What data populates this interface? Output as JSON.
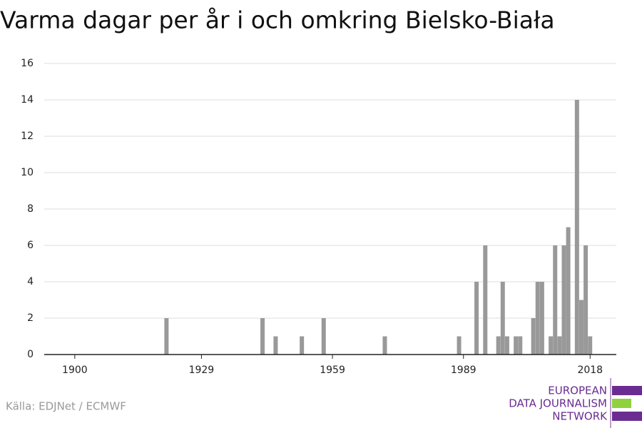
{
  "chart_data": {
    "type": "bar",
    "title": "Varma dagar per år i och omkring Bielsko-Biała",
    "source": "Källa: EDJNet / ECMWF",
    "logo": [
      "EUROPEAN",
      "DATA JOURNALISM",
      "NETWORK"
    ],
    "x": [
      1921,
      1943,
      1946,
      1952,
      1957,
      1971,
      1988,
      1992,
      1994,
      1997,
      1998,
      1999,
      2001,
      2002,
      2005,
      2006,
      2007,
      2009,
      2010,
      2011,
      2012,
      2013,
      2015,
      2016,
      2017,
      2018
    ],
    "values": [
      2,
      2,
      1,
      1,
      2,
      1,
      1,
      4,
      6,
      1,
      4,
      1,
      1,
      1,
      2,
      4,
      4,
      1,
      6,
      1,
      6,
      7,
      14,
      3,
      6,
      1
    ],
    "color": "#999999",
    "xlim": [
      1893,
      2024
    ],
    "xticks": [
      1900,
      1929,
      1959,
      1989,
      2018
    ],
    "ylim": [
      0,
      16
    ],
    "yticks": [
      0,
      2,
      4,
      6,
      8,
      10,
      12,
      14,
      16
    ],
    "grid": true
  }
}
